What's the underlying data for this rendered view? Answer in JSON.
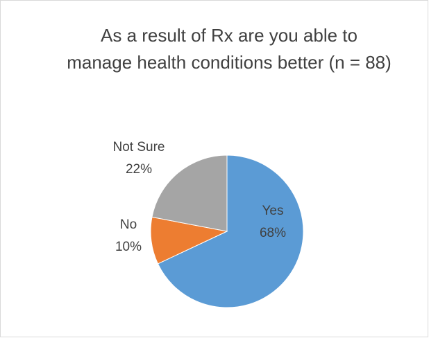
{
  "chart_data": {
    "type": "pie",
    "title": "As a result of Rx are you able to manage health conditions better (n = 88)",
    "categories": [
      "Yes",
      "No",
      "Not Sure"
    ],
    "values": [
      68,
      10,
      22
    ],
    "value_labels": [
      "68%",
      "10%",
      "22%"
    ],
    "colors": [
      "#5b9bd5",
      "#ed7d31",
      "#a5a5a5"
    ]
  }
}
